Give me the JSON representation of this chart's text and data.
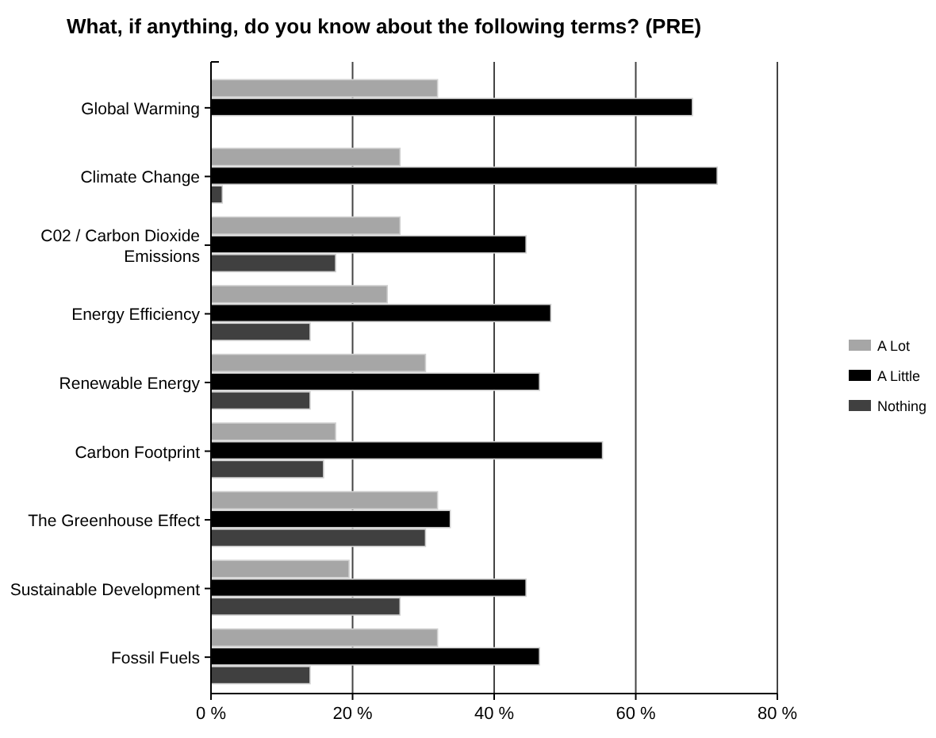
{
  "chart_data": {
    "type": "bar",
    "orientation": "horizontal",
    "title": "What, if anything, do you know about the following terms? (PRE)",
    "categories": [
      "Global Warming",
      "Climate Change",
      "C02 / Carbon Dioxide Emissions",
      "Energy Efficiency",
      "Renewable Energy",
      "Carbon Footprint",
      "The Greenhouse Effect",
      "Sustainable Development",
      "Fossil Fuels"
    ],
    "series": [
      {
        "name": "A Lot",
        "color": "#a6a6a6",
        "values": [
          32,
          26.7,
          26.7,
          24.9,
          30.3,
          17.6,
          32,
          19.5,
          32
        ]
      },
      {
        "name": "A Little",
        "color": "#000000",
        "values": [
          68,
          71.5,
          44.5,
          48,
          46.4,
          55.3,
          33.8,
          44.5,
          46.4
        ]
      },
      {
        "name": "Nothing",
        "color": "#404040",
        "values": [
          0,
          1.6,
          17.6,
          14,
          14,
          15.9,
          30.3,
          26.7,
          14
        ]
      }
    ],
    "xlim": [
      0,
      80
    ],
    "xticks": [
      {
        "value": 0,
        "label": "0 %"
      },
      {
        "value": 20,
        "label": "20 %"
      },
      {
        "value": 40,
        "label": "40 %"
      },
      {
        "value": 60,
        "label": "60 %"
      },
      {
        "value": 80,
        "label": "80 %"
      }
    ],
    "grid": "x",
    "legend": "right"
  }
}
